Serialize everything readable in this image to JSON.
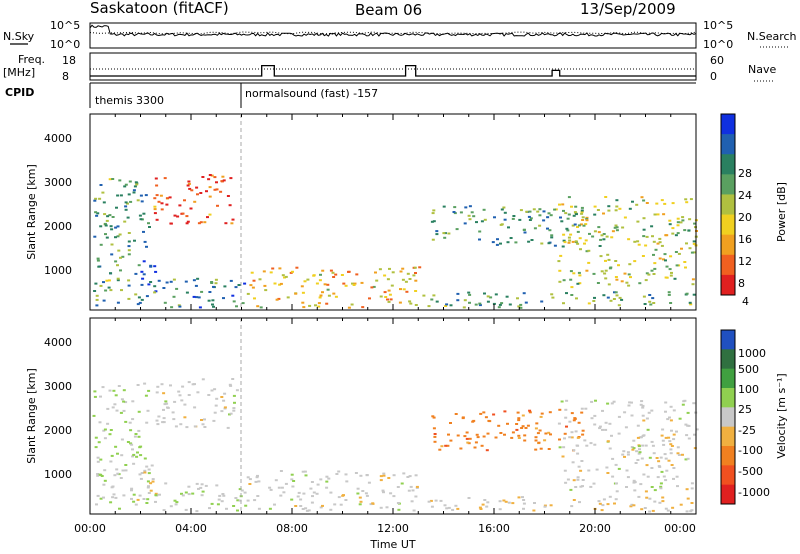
{
  "header": {
    "station": "Saskatoon (fitACF)",
    "beam": "Beam 06",
    "date": "13/Sep/2009"
  },
  "strip": {
    "nsky_label": "N.Sky",
    "nsky_ticks": [
      "10^5",
      "10^0"
    ],
    "nsearch_label": "N.Search",
    "nsearch_ticks": [
      "10^5",
      "10^0"
    ],
    "freq_label": "Freq.",
    "freq_unit": "[MHz]",
    "freq_ticks": [
      "18",
      "8"
    ],
    "nave_label": "Nave",
    "nave_ticks": [
      "60",
      "0"
    ],
    "cpid_label": "CPID",
    "cpid_segments": [
      {
        "label": "themis 3300",
        "start_h": 0,
        "end_h": 6
      },
      {
        "label": "normalsound (fast) -157",
        "start_h": 6,
        "end_h": 24
      }
    ]
  },
  "power_panel": {
    "ylabel": "Slant Range [km]",
    "yticks": [
      "4000",
      "3000",
      "2000",
      "1000"
    ],
    "colorbar_label": "Power [dB]",
    "colorbar_ticks": [
      "28",
      "24",
      "20",
      "16",
      "12",
      "8",
      "4"
    ],
    "colors": [
      "#1030e0",
      "#2060b0",
      "#2a8060",
      "#5aa060",
      "#b0c040",
      "#f0d020",
      "#f0a020",
      "#f06020",
      "#e02020"
    ]
  },
  "velocity_panel": {
    "ylabel": "Slant Range [km]",
    "yticks": [
      "4000",
      "3000",
      "2000",
      "1000"
    ],
    "colorbar_label": "Velocity [m s⁻¹]",
    "colorbar_ticks": [
      "1000",
      "500",
      "100",
      "25",
      "-25",
      "-100",
      "-500",
      "-1000"
    ],
    "colors": [
      "#2050c0",
      "#307040",
      "#40a040",
      "#90d050",
      "#c8c8c8",
      "#f0b040",
      "#f08020",
      "#f05020",
      "#e02020"
    ]
  },
  "xaxis": {
    "label": "Time UT",
    "ticks": [
      "00:00",
      "04:00",
      "08:00",
      "12:00",
      "16:00",
      "20:00",
      "00:00"
    ]
  },
  "chart_data": {
    "type": "heatmap",
    "title": "Saskatoon (fitACF) Beam 06 13/Sep/2009",
    "xlabel": "Time UT",
    "ylabel": "Slant Range [km]",
    "xlim_hours": [
      0,
      24
    ],
    "ylim_km": [
      180,
      4500
    ],
    "power_colorbar_db": [
      4,
      28
    ],
    "velocity_colorbar_ms": [
      -1000,
      1000
    ],
    "frequency_steps": [
      {
        "start_h": 0,
        "end_h": 6.8,
        "value_mhz": 10.5
      },
      {
        "start_h": 6.8,
        "end_h": 7.3,
        "value_mhz": 17
      },
      {
        "start_h": 7.3,
        "end_h": 12.5,
        "value_mhz": 10.5
      },
      {
        "start_h": 12.5,
        "end_h": 12.9,
        "value_mhz": 17
      },
      {
        "start_h": 12.9,
        "end_h": 18.3,
        "value_mhz": 10.5
      },
      {
        "start_h": 18.3,
        "end_h": 18.6,
        "value_mhz": 14
      },
      {
        "start_h": 18.6,
        "end_h": 24,
        "value_mhz": 10.5
      }
    ],
    "scatter_regions": [
      {
        "start_h": 0.1,
        "end_h": 2.3,
        "range_min": 300,
        "range_max": 3100,
        "power_db": 20,
        "velocity": 100
      },
      {
        "start_h": 1.8,
        "end_h": 2.6,
        "range_min": 400,
        "range_max": 1300,
        "power_db": 28,
        "velocity": -100
      },
      {
        "start_h": 2.5,
        "end_h": 5.8,
        "range_min": 2100,
        "range_max": 3200,
        "power_db": 6,
        "velocity": 0
      },
      {
        "start_h": 2.5,
        "end_h": 6.2,
        "range_min": 250,
        "range_max": 900,
        "power_db": 22,
        "velocity": 100
      },
      {
        "start_h": 6.2,
        "end_h": 13.0,
        "range_min": 250,
        "range_max": 1150,
        "power_db": 12,
        "velocity": 0
      },
      {
        "start_h": 13.0,
        "end_h": 24,
        "range_min": 250,
        "range_max": 600,
        "power_db": 20,
        "velocity": -100
      },
      {
        "start_h": 13.5,
        "end_h": 19.5,
        "range_min": 1600,
        "range_max": 2500,
        "power_db": 20,
        "velocity": -500
      },
      {
        "start_h": 18.5,
        "end_h": 24,
        "range_min": 700,
        "range_max": 2700,
        "power_db": 16,
        "velocity": 0
      }
    ]
  }
}
